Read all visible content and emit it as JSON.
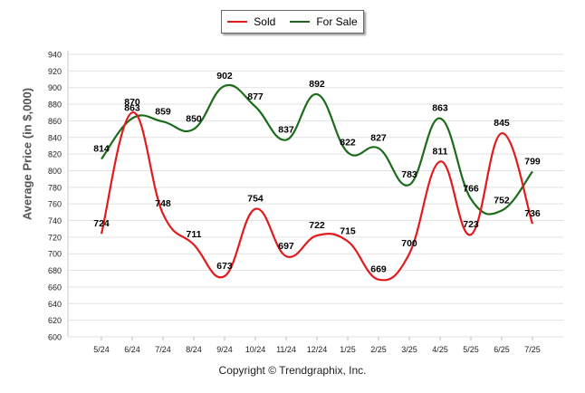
{
  "legend": {
    "series": [
      {
        "name": "Sold",
        "color": "#e31a1c"
      },
      {
        "name": "For Sale",
        "color": "#1b6b1b"
      }
    ]
  },
  "footer": {
    "copyright": "Copyright © Trendgraphix, Inc."
  },
  "chart_data": {
    "type": "line",
    "title": "",
    "xlabel": "",
    "ylabel": "Average Price (in $,000)",
    "categories": [
      "5/24",
      "6/24",
      "7/24",
      "8/24",
      "9/24",
      "10/24",
      "11/24",
      "12/24",
      "1/25",
      "2/25",
      "3/25",
      "4/25",
      "5/25",
      "6/25",
      "7/25"
    ],
    "y_ticks": [
      600,
      620,
      640,
      660,
      680,
      700,
      720,
      740,
      760,
      780,
      800,
      820,
      840,
      860,
      880,
      900,
      920,
      940
    ],
    "ylim": [
      600,
      940
    ],
    "grid": true,
    "legend_position": "top-center",
    "series": [
      {
        "name": "Sold",
        "color": "#e31a1c",
        "values": [
          724,
          870,
          748,
          711,
          673,
          754,
          697,
          722,
          715,
          669,
          700,
          811,
          723,
          845,
          736
        ]
      },
      {
        "name": "For Sale",
        "color": "#1b6b1b",
        "values": [
          814,
          863,
          859,
          850,
          902,
          877,
          837,
          892,
          822,
          827,
          783,
          863,
          766,
          752,
          799
        ]
      }
    ]
  }
}
